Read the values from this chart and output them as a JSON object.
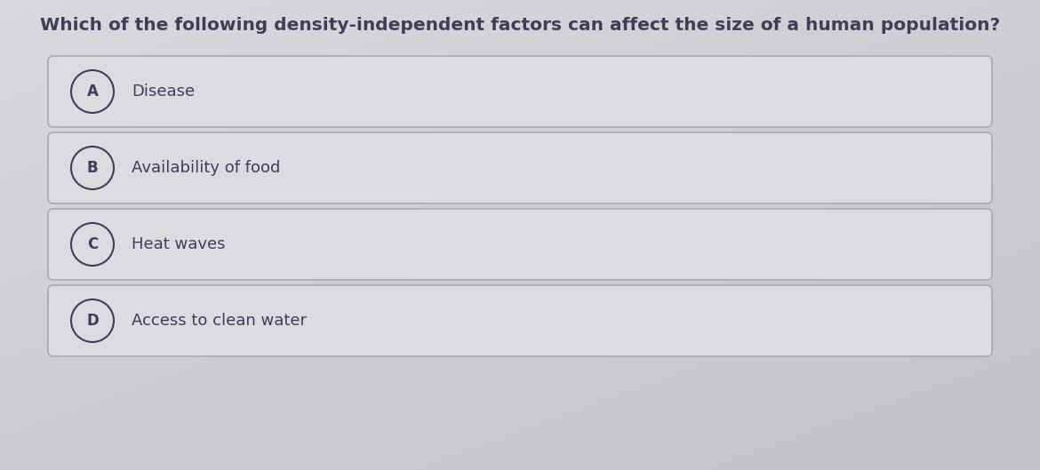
{
  "title": "Which of the following density-independent factors can affect the size of a human population?",
  "title_fontsize": 14.5,
  "title_color": "#3d3d5c",
  "background_color": "#d0d0d5",
  "option_bg_color": "#dcdce0",
  "option_border_color": "#aaaaaa",
  "options": [
    {
      "label": "A",
      "text": "Disease"
    },
    {
      "label": "B",
      "text": "Availability of food"
    },
    {
      "label": "C",
      "text": "Heat waves"
    },
    {
      "label": "D",
      "text": "Access to clean water"
    }
  ],
  "option_text_fontsize": 13,
  "label_fontsize": 12,
  "text_color": "#3d3d5c",
  "circle_edge_color": "#3d3d5c",
  "circle_face_color": "#dcdce0"
}
